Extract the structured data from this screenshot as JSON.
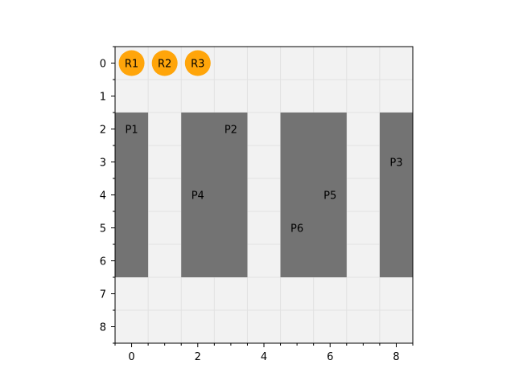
{
  "grid": {
    "x_range": [
      -0.5,
      8.5
    ],
    "y_range": [
      -0.5,
      8.5
    ],
    "y_inverted": true,
    "x_ticks": [
      0,
      2,
      4,
      6,
      8
    ],
    "y_ticks": [
      0,
      1,
      2,
      3,
      4,
      5,
      6,
      7,
      8
    ],
    "grid_lines": true,
    "background_color": "#f2f2f2",
    "grid_color": "#e2e2e2"
  },
  "obstacles": {
    "color": "#737373",
    "blocks": [
      {
        "x": [
          -0.5,
          0.5
        ],
        "y": [
          1.5,
          6.5
        ]
      },
      {
        "x": [
          1.5,
          3.5
        ],
        "y": [
          1.5,
          6.5
        ]
      },
      {
        "x": [
          4.5,
          6.5
        ],
        "y": [
          1.5,
          6.5
        ]
      },
      {
        "x": [
          7.5,
          8.5
        ],
        "y": [
          1.5,
          6.5
        ]
      }
    ]
  },
  "robots": {
    "color": "#ffa50a",
    "items": [
      {
        "label": "R1",
        "x": 0,
        "y": 0
      },
      {
        "label": "R2",
        "x": 1,
        "y": 0
      },
      {
        "label": "R3",
        "x": 2,
        "y": 0
      }
    ]
  },
  "pickups": [
    {
      "label": "P1",
      "x": 0,
      "y": 2
    },
    {
      "label": "P2",
      "x": 3,
      "y": 2
    },
    {
      "label": "P3",
      "x": 8,
      "y": 3
    },
    {
      "label": "P4",
      "x": 2,
      "y": 4
    },
    {
      "label": "P5",
      "x": 6,
      "y": 4
    },
    {
      "label": "P6",
      "x": 5,
      "y": 5
    }
  ]
}
